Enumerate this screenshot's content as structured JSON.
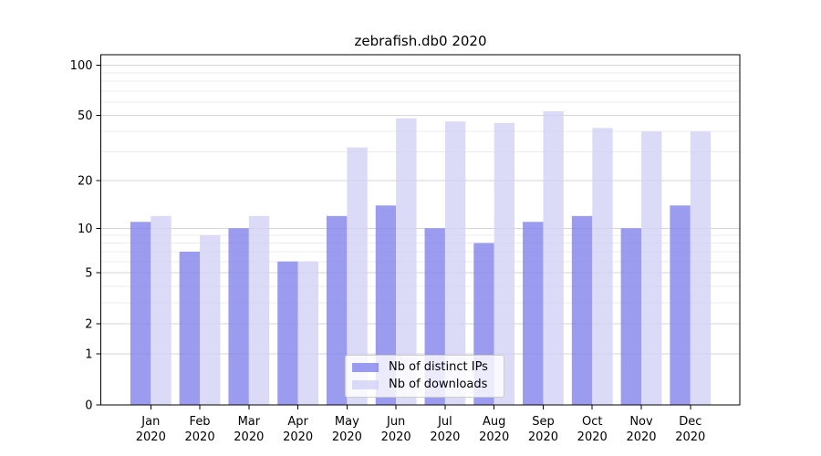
{
  "chart_data": {
    "type": "bar",
    "title": "zebrafish.db0 2020",
    "categories": [
      "Jan",
      "Feb",
      "Mar",
      "Apr",
      "May",
      "Jun",
      "Jul",
      "Aug",
      "Sep",
      "Oct",
      "Nov",
      "Dec"
    ],
    "year_label": "2020",
    "series": [
      {
        "name": "Nb of distinct IPs",
        "color": "#8282ec",
        "values": [
          11,
          7,
          10,
          6,
          12,
          14,
          10,
          8,
          11,
          12,
          10,
          14
        ]
      },
      {
        "name": "Nb of downloads",
        "color": "#d2d2f6",
        "values": [
          12,
          9,
          12,
          6,
          32,
          48,
          46,
          45,
          53,
          42,
          40,
          40
        ]
      }
    ],
    "yscale": "log1p",
    "y_ticks": [
      0,
      1,
      2,
      5,
      10,
      20,
      50,
      100
    ],
    "y_minor_ticks": [
      3,
      4,
      6,
      7,
      8,
      9,
      30,
      40,
      60,
      70,
      80,
      90
    ],
    "ylim": [
      0,
      116
    ],
    "grid": true,
    "legend_position": "lower center",
    "colors": {
      "axis": "#000000",
      "grid_major": "#d6d6d6",
      "grid_minor": "#ececec",
      "background": "#ffffff"
    }
  }
}
